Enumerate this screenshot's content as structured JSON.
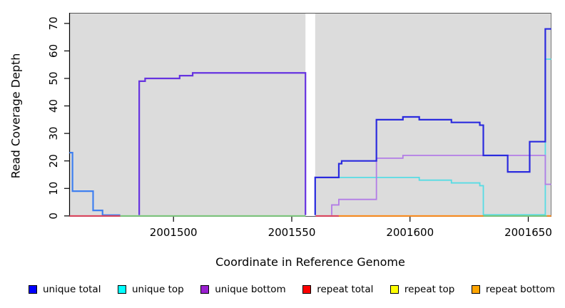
{
  "chart_data": {
    "type": "line",
    "subtype": "step-coverage",
    "title": "",
    "xlabel": "Coordinate in Reference Genome",
    "ylabel": "Read Coverage Depth",
    "x_ticks": [
      2001500,
      2001550,
      2001600,
      2001650
    ],
    "y_ticks": [
      0,
      10,
      20,
      30,
      40,
      50,
      60,
      70
    ],
    "xlim": [
      2001455.9,
      2001659.8
    ],
    "ylim": [
      -0.3,
      73.85
    ],
    "grid": false,
    "panel_bg": "#dcdcdc",
    "missing_data_gap": {
      "from": 2001555.8,
      "to": 2001559.9
    },
    "legend_position": "bottom-horizontal",
    "legend": [
      {
        "label": "unique total",
        "color": "#0000ff"
      },
      {
        "label": "unique top",
        "color": "#00ffff"
      },
      {
        "label": "unique bottom",
        "color": "#9a20d0"
      },
      {
        "label": "repeat total",
        "color": "#ff0000"
      },
      {
        "label": "repeat top",
        "color": "#ffff00"
      },
      {
        "label": "repeat bottom",
        "color": "#ffa500"
      }
    ],
    "series": [
      {
        "name": "unique total (left segment, overlaps unique top)",
        "color": "#4080f0",
        "width": 2.2,
        "points": [
          [
            2001456,
            23
          ],
          [
            2001457.3,
            23
          ],
          [
            2001457.3,
            9
          ],
          [
            2001466,
            9
          ],
          [
            2001466,
            2
          ],
          [
            2001470,
            2
          ],
          [
            2001470,
            0.3
          ],
          [
            2001477.5,
            0.3
          ]
        ]
      },
      {
        "name": "unique total (plateau segment, overlaps unique bottom)",
        "color": "#6633e0",
        "width": 2.2,
        "points": [
          [
            2001485.5,
            0.3
          ],
          [
            2001485.5,
            49
          ],
          [
            2001488,
            49
          ],
          [
            2001488,
            50
          ],
          [
            2001502.6,
            50
          ],
          [
            2001502.6,
            51
          ],
          [
            2001508.1,
            51
          ],
          [
            2001508.1,
            52
          ],
          [
            2001555.8,
            52
          ],
          [
            2001555.8,
            0.3
          ]
        ]
      },
      {
        "name": "unique top",
        "color": "#57dce4",
        "width": 1.8,
        "points": [
          [
            2001559.9,
            0.3
          ],
          [
            2001559.9,
            14
          ],
          [
            2001603.9,
            14
          ],
          [
            2001603.9,
            13
          ],
          [
            2001617.5,
            13
          ],
          [
            2001617.5,
            12
          ],
          [
            2001629.5,
            12
          ],
          [
            2001629.5,
            11
          ],
          [
            2001631,
            11
          ],
          [
            2001631,
            0.4
          ],
          [
            2001657.2,
            0.4
          ],
          [
            2001657.2,
            57
          ],
          [
            2001659.7,
            57
          ]
        ]
      },
      {
        "name": "unique bottom",
        "color": "#b27ce6",
        "width": 1.8,
        "points": [
          [
            2001566.9,
            0.3
          ],
          [
            2001566.9,
            4
          ],
          [
            2001569.9,
            4
          ],
          [
            2001569.9,
            6
          ],
          [
            2001585.8,
            6
          ],
          [
            2001585.8,
            21
          ],
          [
            2001597,
            21
          ],
          [
            2001597,
            22
          ],
          [
            2001657.2,
            22
          ],
          [
            2001657.2,
            11.5
          ],
          [
            2001659.7,
            11.5
          ]
        ]
      },
      {
        "name": "unique total (right segment)",
        "color": "#2b2bde",
        "width": 2.2,
        "points": [
          [
            2001559.9,
            0.3
          ],
          [
            2001559.9,
            14
          ],
          [
            2001569.9,
            14
          ],
          [
            2001569.9,
            19
          ],
          [
            2001571.1,
            19
          ],
          [
            2001571.1,
            20
          ],
          [
            2001585.8,
            20
          ],
          [
            2001585.8,
            35
          ],
          [
            2001597,
            35
          ],
          [
            2001597,
            36
          ],
          [
            2001603.9,
            36
          ],
          [
            2001603.9,
            35
          ],
          [
            2001617.5,
            35
          ],
          [
            2001617.5,
            34
          ],
          [
            2001629.5,
            34
          ],
          [
            2001629.5,
            33
          ],
          [
            2001631,
            33
          ],
          [
            2001631,
            22
          ],
          [
            2001641.3,
            22
          ],
          [
            2001641.3,
            16
          ],
          [
            2001650.6,
            16
          ],
          [
            2001650.6,
            27
          ],
          [
            2001657.2,
            27
          ],
          [
            2001657.2,
            68
          ],
          [
            2001659.7,
            68
          ]
        ]
      }
    ],
    "baseline_segments": [
      {
        "name": "repeat total at 0 (left)",
        "color": "#e0435c",
        "from": 2001456,
        "to": 2001477.5
      },
      {
        "name": "repeat top at 0 (left, blended green)",
        "color": "#7cc87c",
        "from": 2001477.5,
        "to": 2001555.8
      },
      {
        "name": "repeat total at 0 (after gap)",
        "color": "#e0435c",
        "from": 2001560.1,
        "to": 2001569.9
      },
      {
        "name": "repeat bottom at 0 (middle)",
        "color": "#ff8c1a",
        "from": 2001569.9,
        "to": 2001631
      },
      {
        "name": "repeat top at 0 (right, blended green)",
        "color": "#7cc87c",
        "from": 2001631,
        "to": 2001657.9
      },
      {
        "name": "repeat bottom at 0 (right edge)",
        "color": "#ff8c1a",
        "from": 2001657.9,
        "to": 2001659.7
      }
    ]
  }
}
